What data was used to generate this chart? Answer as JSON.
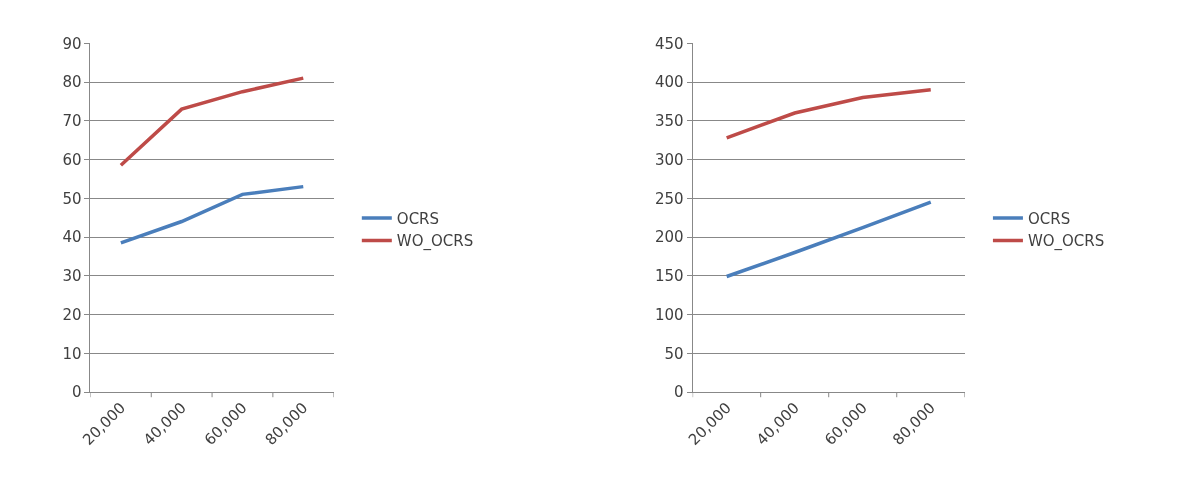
{
  "chart_data": [
    {
      "type": "line",
      "categories": [
        "20,000",
        "40,000",
        "60,000",
        "80,000"
      ],
      "ylim": [
        0,
        90
      ],
      "yticks": [
        0,
        10,
        20,
        30,
        40,
        50,
        60,
        70,
        80,
        90
      ],
      "grid": "y",
      "legend": "right",
      "marker": "none",
      "line_style": "solid",
      "series": [
        {
          "name": "OCRS",
          "color": "#4a7ebb",
          "values": [
            38.5,
            44,
            51,
            53
          ]
        },
        {
          "name": "WO_OCRS",
          "color": "#be4b48",
          "values": [
            58.5,
            73,
            77.5,
            81
          ]
        }
      ]
    },
    {
      "type": "line",
      "categories": [
        "20,000",
        "40,000",
        "60,000",
        "80,000"
      ],
      "ylim": [
        0,
        450
      ],
      "yticks": [
        0,
        50,
        100,
        150,
        200,
        250,
        300,
        350,
        400,
        450
      ],
      "grid": "y",
      "legend": "right",
      "marker": "none",
      "line_style": "solid",
      "series": [
        {
          "name": "OCRS",
          "color": "#4a7ebb",
          "values": [
            149,
            180,
            212,
            245
          ]
        },
        {
          "name": "WO_OCRS",
          "color": "#be4b48",
          "values": [
            328,
            360,
            380,
            390
          ]
        }
      ]
    }
  ]
}
